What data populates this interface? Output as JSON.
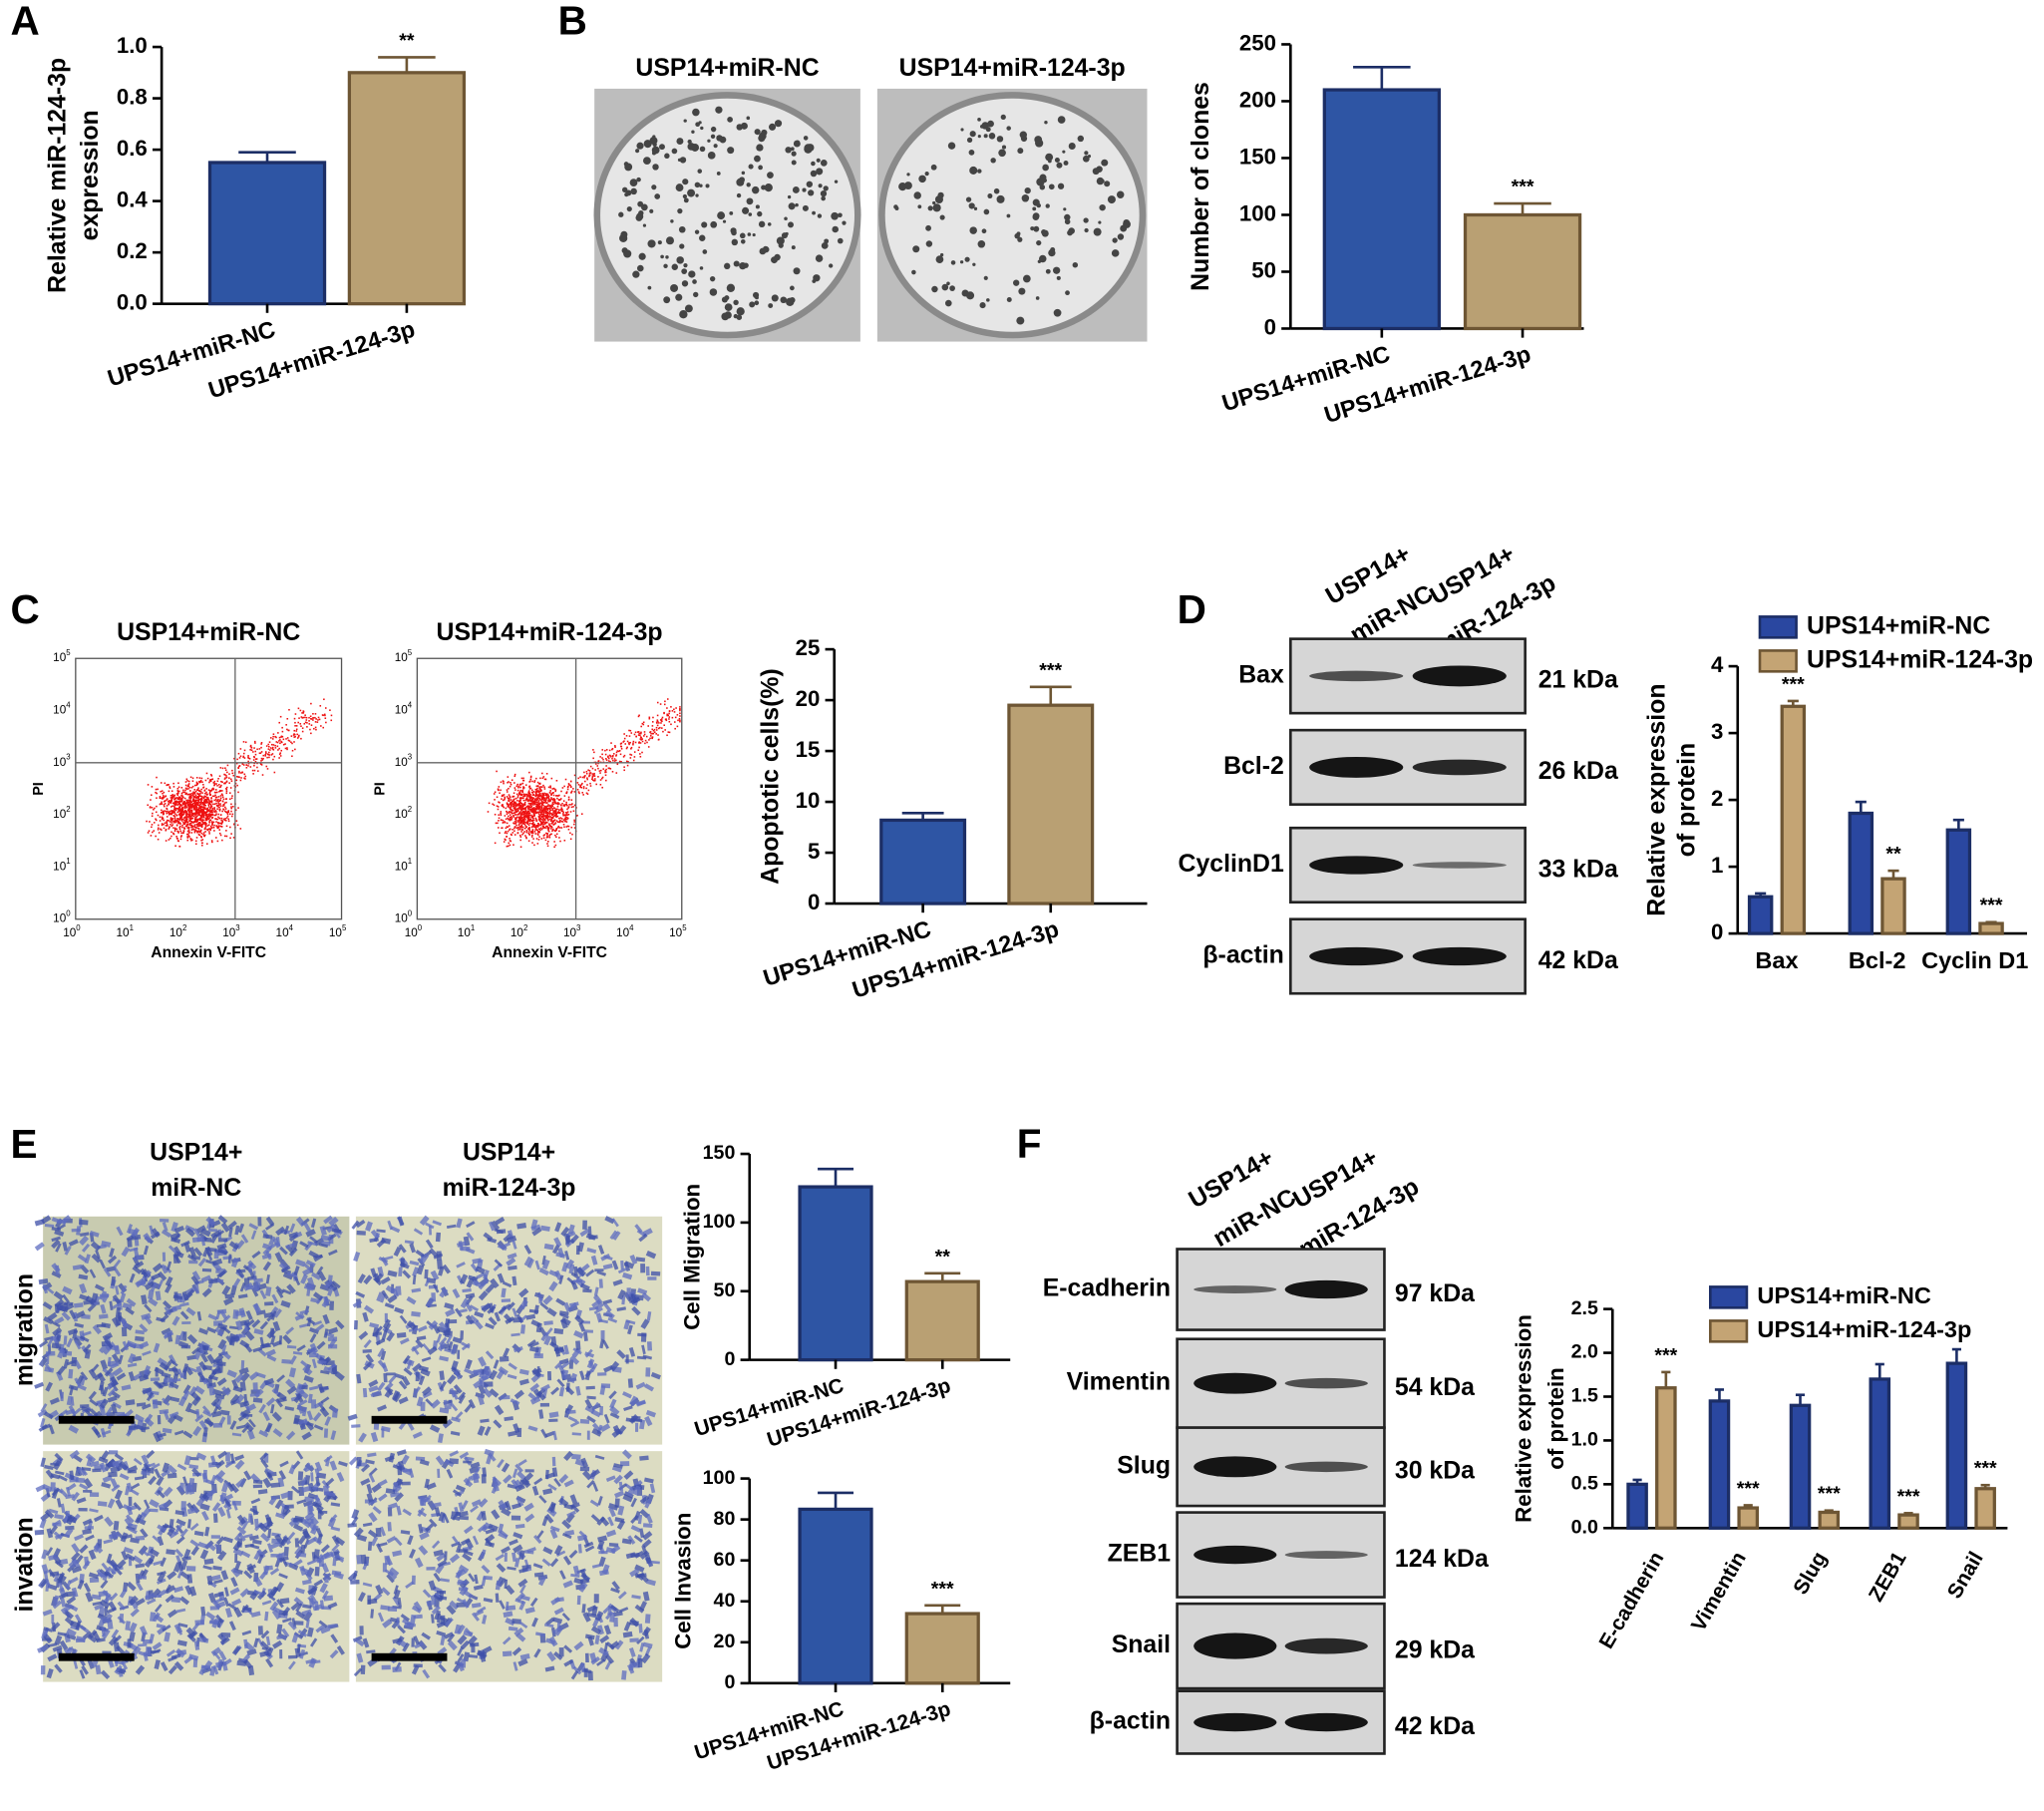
{
  "panels": [
    "A",
    "B",
    "C",
    "D",
    "E",
    "F"
  ],
  "plates": {
    "titles": [
      "USP14+miR-NC",
      "USP14+miR-124-3p"
    ]
  },
  "flow": {
    "titles": [
      "USP14+miR-NC",
      "USP14+miR-124-3p"
    ],
    "xlabel": "Annexin V-FITC",
    "ylabel": "PI",
    "tick_base": "10",
    "tick_exponents": [
      "0",
      "1",
      "2",
      "3",
      "4",
      "5"
    ]
  },
  "transwell": {
    "columns": [
      [
        "USP14+",
        "miR-NC"
      ],
      [
        "USP14+",
        "miR-124-3p"
      ]
    ],
    "rows": [
      "migration",
      "invation"
    ]
  },
  "blot_d": {
    "lanes": [
      [
        "USP14+",
        "miR-NC"
      ],
      [
        "USP14+",
        "miR-124-3p"
      ]
    ],
    "rows": [
      {
        "protein": "Bax",
        "size": "21 kDa"
      },
      {
        "protein": "Bcl-2",
        "size": "26 kDa"
      },
      {
        "protein": "CyclinD1",
        "size": "33 kDa"
      },
      {
        "protein": "β-actin",
        "size": "42 kDa"
      }
    ]
  },
  "blot_f": {
    "lanes": [
      [
        "USP14+",
        "miR-NC"
      ],
      [
        "USP14+",
        "miR-124-3p"
      ]
    ],
    "rows": [
      {
        "protein": "E-cadherin",
        "size": "97 kDa"
      },
      {
        "protein": "Vimentin",
        "size": "54 kDa"
      },
      {
        "protein": "Slug",
        "size": "30 kDa"
      },
      {
        "protein": "ZEB1",
        "size": "124 kDa"
      },
      {
        "protein": "Snail",
        "size": "29 kDa"
      },
      {
        "protein": "β-actin",
        "size": "42 kDa"
      }
    ]
  },
  "chart_data": [
    {
      "type": "bar",
      "ylabel": [
        "Relative miR-124-3p",
        "expression"
      ],
      "categories": [
        "UPS14+miR-NC",
        "UPS14+miR-124-3p"
      ],
      "values": [
        0.55,
        0.9
      ],
      "errors": [
        0.04,
        0.06
      ],
      "annotations": [
        null,
        "**"
      ],
      "colors": [
        "#2e55a4",
        "#b9a073"
      ],
      "ylim": [
        0,
        1
      ],
      "yticks": [
        {
          "value": 0,
          "label": "0.0"
        },
        0.2,
        0.4,
        0.6,
        0.8,
        {
          "value": 1,
          "label": "1.0"
        }
      ]
    },
    {
      "type": "bar",
      "ylabel": [
        "Number of clones"
      ],
      "categories": [
        "UPS14+miR-NC",
        "UPS14+miR-124-3p"
      ],
      "values": [
        210,
        100
      ],
      "errors": [
        20,
        10
      ],
      "annotations": [
        null,
        "***"
      ],
      "colors": [
        "#2e55a4",
        "#b9a073"
      ],
      "ylim": [
        0,
        250
      ],
      "yticks": [
        0,
        50,
        100,
        150,
        200,
        250
      ]
    },
    {
      "type": "bar",
      "ylabel": [
        "Apoptotic cells(%)"
      ],
      "categories": [
        "UPS14+miR-NC",
        "UPS14+miR-124-3p"
      ],
      "values": [
        8.2,
        19.5
      ],
      "errors": [
        0.7,
        1.8
      ],
      "annotations": [
        null,
        "***"
      ],
      "colors": [
        "#2e55a4",
        "#b9a073"
      ],
      "ylim": [
        0,
        25
      ],
      "yticks": [
        0,
        5,
        10,
        15,
        20,
        25
      ]
    },
    {
      "type": "bar",
      "ylabel": [
        "Relative  expression",
        "of protein"
      ],
      "categories": [
        "Bax",
        "Bcl-2",
        "Cyclin D1"
      ],
      "series": [
        {
          "name": "UPS14+miR-NC",
          "color": "#2a47a0",
          "values": [
            0.55,
            1.8,
            1.55
          ],
          "errors": [
            0.05,
            0.17,
            0.15
          ],
          "annotations": [
            null,
            null,
            null
          ]
        },
        {
          "name": "UPS14+miR-124-3p",
          "color": "#c4a474",
          "values": [
            3.4,
            0.82,
            0.15
          ],
          "errors": [
            0.08,
            0.12,
            0.02
          ],
          "annotations": [
            "***",
            "**",
            "***"
          ]
        }
      ],
      "ylim": [
        0,
        4
      ],
      "yticks": [
        0,
        1,
        2,
        3,
        4
      ],
      "legend": "top"
    },
    {
      "type": "bar",
      "ylabel": [
        "Cell Migration"
      ],
      "categories": [
        "UPS14+miR-NC",
        "UPS14+miR-124-3p"
      ],
      "values": [
        126,
        57
      ],
      "errors": [
        13,
        6
      ],
      "annotations": [
        null,
        "**"
      ],
      "colors": [
        "#2e55a4",
        "#b9a073"
      ],
      "ylim": [
        0,
        150
      ],
      "yticks": [
        0,
        50,
        100,
        150
      ]
    },
    {
      "type": "bar",
      "ylabel": [
        "Cell Invasion"
      ],
      "categories": [
        "UPS14+miR-NC",
        "UPS14+miR-124-3p"
      ],
      "values": [
        85,
        34
      ],
      "errors": [
        8,
        4
      ],
      "annotations": [
        null,
        "***"
      ],
      "colors": [
        "#2e55a4",
        "#b9a073"
      ],
      "ylim": [
        0,
        100
      ],
      "yticks": [
        0,
        20,
        40,
        60,
        80,
        100
      ]
    },
    {
      "type": "bar",
      "ylabel": [
        "Relative  expression",
        "of protein"
      ],
      "categories": [
        "E-cadherin",
        "Vimentin",
        "Slug",
        "ZEB1",
        "Snail"
      ],
      "series": [
        {
          "name": "UPS14+miR-NC",
          "color": "#2a47a0",
          "values": [
            0.5,
            1.45,
            1.4,
            1.7,
            1.88
          ],
          "errors": [
            0.05,
            0.13,
            0.12,
            0.17,
            0.16
          ],
          "annotations": [
            null,
            null,
            null,
            null,
            null
          ]
        },
        {
          "name": "UPS14+miR-124-3p",
          "color": "#c4a474",
          "values": [
            1.6,
            0.23,
            0.18,
            0.15,
            0.45
          ],
          "errors": [
            0.18,
            0.03,
            0.02,
            0.02,
            0.04
          ],
          "annotations": [
            "***",
            "***",
            "***",
            "***",
            "***"
          ]
        }
      ],
      "ylim": [
        0,
        2.5
      ],
      "yticks": [
        {
          "value": 0,
          "label": "0.0"
        },
        0.5,
        {
          "value": 1,
          "label": "1.0"
        },
        1.5,
        {
          "value": 2,
          "label": "2.0"
        },
        2.5
      ],
      "legend": "top"
    }
  ]
}
